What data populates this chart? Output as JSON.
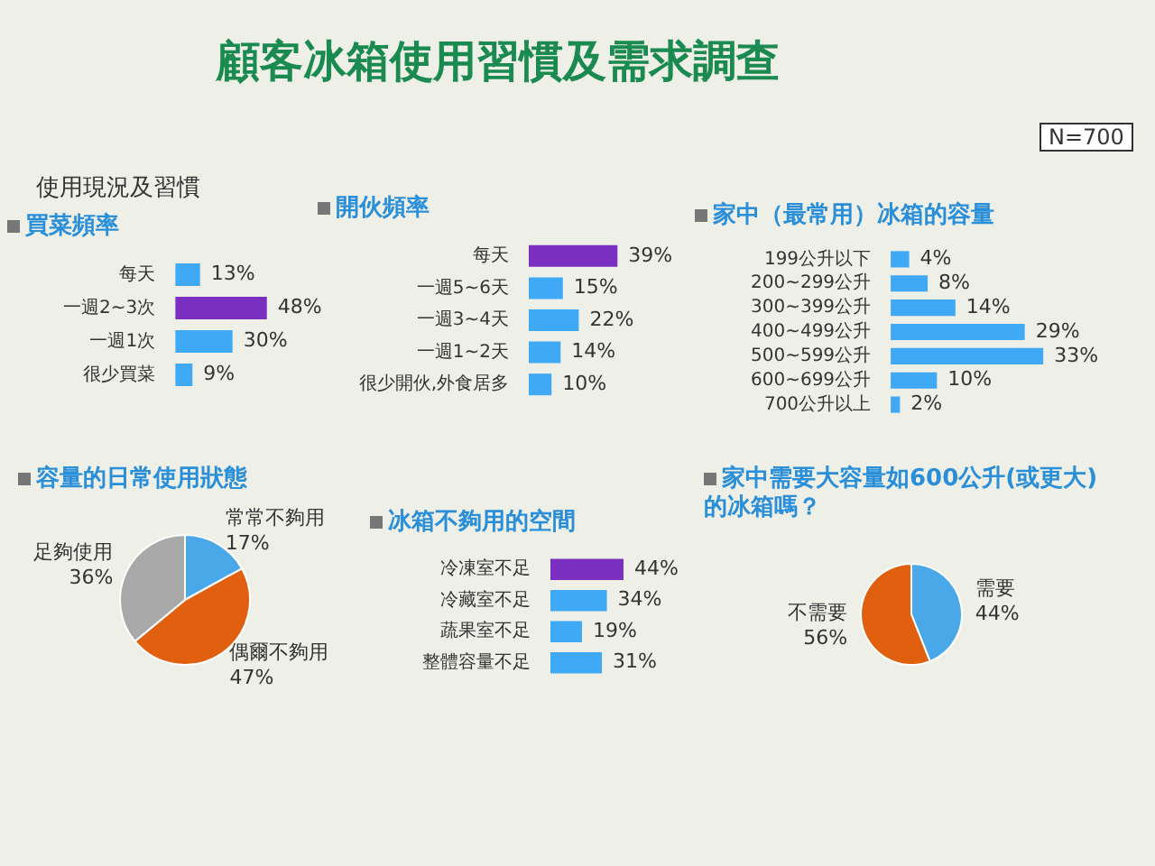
{
  "chart_data": [
    {
      "type": "other",
      "title": "顧客冰箱使用習慣及需求調查",
      "annotations": [
        "N=700",
        "使用現況及習慣"
      ]
    },
    {
      "type": "bar",
      "orientation": "horizontal",
      "title": "買菜頻率",
      "categories": [
        "每天",
        "一週2~3次",
        "一週1次",
        "很少買菜"
      ],
      "values": [
        13,
        48,
        30,
        9
      ],
      "value_labels": [
        "13%",
        "48%",
        "30%",
        "9%"
      ],
      "colors": [
        "#3fa9f5",
        "#7a2fc0",
        "#3fa9f5",
        "#3fa9f5"
      ],
      "tick_labels": "y",
      "legend": false
    },
    {
      "type": "bar",
      "orientation": "horizontal",
      "title": "開伙頻率",
      "categories": [
        "每天",
        "一週5~6天",
        "一週3~4天",
        "一週1~2天",
        "很少開伙,外食居多"
      ],
      "values": [
        39,
        15,
        22,
        14,
        10
      ],
      "value_labels": [
        "39%",
        "15%",
        "22%",
        "14%",
        "10%"
      ],
      "colors": [
        "#7a2fc0",
        "#3fa9f5",
        "#3fa9f5",
        "#3fa9f5",
        "#3fa9f5"
      ],
      "tick_labels": "y",
      "legend": false
    },
    {
      "type": "bar",
      "orientation": "horizontal",
      "title": "家中（最常用）冰箱的容量",
      "categories": [
        "199公升以下",
        "200~299公升",
        "300~399公升",
        "400~499公升",
        "500~599公升",
        "600~699公升",
        "700公升以上"
      ],
      "values": [
        4,
        8,
        14,
        29,
        33,
        10,
        2
      ],
      "value_labels": [
        "4%",
        "8%",
        "14%",
        "29%",
        "33%",
        "10%",
        "2%"
      ],
      "colors": [
        "#3fa9f5",
        "#3fa9f5",
        "#3fa9f5",
        "#3fa9f5",
        "#3fa9f5",
        "#3fa9f5",
        "#3fa9f5"
      ],
      "tick_labels": "y",
      "legend": false
    },
    {
      "type": "pie",
      "title": "容量的日常使用狀態",
      "categories": [
        "常常不夠用",
        "偶爾不夠用",
        "足夠使用"
      ],
      "values": [
        17,
        47,
        36
      ],
      "value_labels": [
        "17%",
        "47%",
        "36%"
      ],
      "colors": [
        "#4aa8e8",
        "#e0600f",
        "#a9a9a9"
      ],
      "legend": false
    },
    {
      "type": "bar",
      "orientation": "horizontal",
      "title": "冰箱不夠用的空間",
      "categories": [
        "冷凍室不足",
        "冷藏室不足",
        "蔬果室不足",
        "整體容量不足"
      ],
      "values": [
        44,
        34,
        19,
        31
      ],
      "value_labels": [
        "44%",
        "34%",
        "19%",
        "31%"
      ],
      "colors": [
        "#7a2fc0",
        "#3fa9f5",
        "#3fa9f5",
        "#3fa9f5"
      ],
      "tick_labels": "y",
      "legend": false
    },
    {
      "type": "pie",
      "title": "家中需要大容量如600公升(或更大)的冰箱嗎？",
      "categories": [
        "需要",
        "不需要"
      ],
      "values": [
        44,
        56
      ],
      "value_labels": [
        "44%",
        "56%"
      ],
      "colors": [
        "#4aa8e8",
        "#e0600f"
      ],
      "legend": false
    }
  ]
}
